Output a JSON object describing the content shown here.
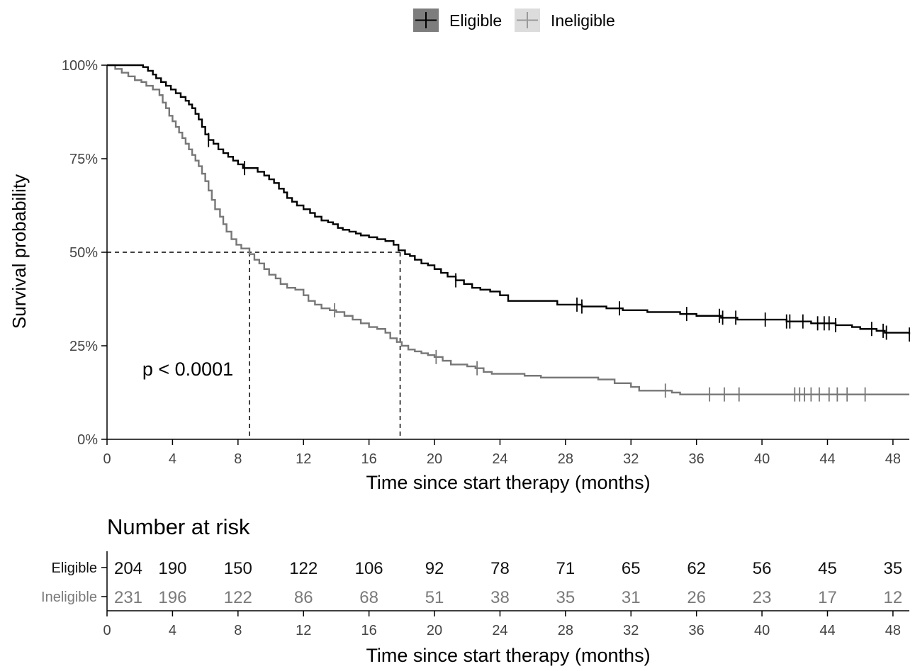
{
  "chart_data": {
    "type": "line",
    "subtype": "kaplan-meier",
    "title": "",
    "xlabel": "Time since start therapy (months)",
    "ylabel": "Survival probability",
    "xlim": [
      0,
      49
    ],
    "ylim": [
      0,
      1
    ],
    "x_ticks": [
      0,
      4,
      8,
      12,
      16,
      20,
      24,
      28,
      32,
      36,
      40,
      44,
      48
    ],
    "x_tick_labels": [
      "0",
      "4",
      "8",
      "12",
      "16",
      "20",
      "24",
      "28",
      "32",
      "36",
      "40",
      "44",
      "48"
    ],
    "y_ticks": [
      0,
      0.25,
      0.5,
      0.75,
      1.0
    ],
    "y_tick_labels": [
      "0%",
      "25%",
      "50%",
      "75%",
      "100%"
    ],
    "grid": false,
    "legend": {
      "placement": "top",
      "entries": [
        "Eligible",
        "Ineligible"
      ]
    },
    "annotation": "p < 0.0001",
    "median_lines": [
      {
        "series": "Ineligible",
        "x": 8.7,
        "y": 0.5
      },
      {
        "series": "Eligible",
        "x": 17.9,
        "y": 0.5
      }
    ],
    "series": [
      {
        "name": "Eligible",
        "color": "#000000",
        "steps": [
          [
            0,
            1.0
          ],
          [
            2.2,
            0.995
          ],
          [
            2.5,
            0.985
          ],
          [
            2.8,
            0.975
          ],
          [
            3.0,
            0.965
          ],
          [
            3.3,
            0.955
          ],
          [
            3.6,
            0.945
          ],
          [
            3.9,
            0.935
          ],
          [
            4.2,
            0.925
          ],
          [
            4.5,
            0.915
          ],
          [
            4.8,
            0.905
          ],
          [
            5.0,
            0.895
          ],
          [
            5.2,
            0.885
          ],
          [
            5.4,
            0.87
          ],
          [
            5.6,
            0.855
          ],
          [
            5.8,
            0.835
          ],
          [
            6.0,
            0.815
          ],
          [
            6.2,
            0.8
          ],
          [
            6.5,
            0.79
          ],
          [
            6.8,
            0.775
          ],
          [
            7.1,
            0.765
          ],
          [
            7.4,
            0.755
          ],
          [
            7.7,
            0.745
          ],
          [
            8.0,
            0.735
          ],
          [
            8.3,
            0.725
          ],
          [
            8.8,
            0.725
          ],
          [
            9.2,
            0.715
          ],
          [
            9.6,
            0.705
          ],
          [
            9.9,
            0.695
          ],
          [
            10.2,
            0.685
          ],
          [
            10.5,
            0.67
          ],
          [
            10.8,
            0.66
          ],
          [
            11.0,
            0.645
          ],
          [
            11.3,
            0.635
          ],
          [
            11.6,
            0.625
          ],
          [
            12.0,
            0.615
          ],
          [
            12.4,
            0.605
          ],
          [
            12.7,
            0.595
          ],
          [
            13.1,
            0.585
          ],
          [
            13.5,
            0.58
          ],
          [
            13.8,
            0.575
          ],
          [
            14.1,
            0.565
          ],
          [
            14.4,
            0.56
          ],
          [
            14.8,
            0.555
          ],
          [
            15.2,
            0.55
          ],
          [
            15.5,
            0.545
          ],
          [
            16.0,
            0.54
          ],
          [
            16.5,
            0.535
          ],
          [
            17.0,
            0.53
          ],
          [
            17.5,
            0.52
          ],
          [
            17.8,
            0.505
          ],
          [
            18.2,
            0.495
          ],
          [
            18.5,
            0.49
          ],
          [
            18.8,
            0.48
          ],
          [
            19.2,
            0.47
          ],
          [
            19.6,
            0.465
          ],
          [
            20.0,
            0.455
          ],
          [
            20.4,
            0.445
          ],
          [
            20.8,
            0.435
          ],
          [
            21.3,
            0.425
          ],
          [
            21.8,
            0.415
          ],
          [
            22.3,
            0.405
          ],
          [
            22.8,
            0.4
          ],
          [
            23.4,
            0.395
          ],
          [
            24.0,
            0.385
          ],
          [
            24.5,
            0.37
          ],
          [
            26.0,
            0.37
          ],
          [
            27.5,
            0.36
          ],
          [
            29.0,
            0.355
          ],
          [
            30.5,
            0.35
          ],
          [
            31.5,
            0.345
          ],
          [
            33.0,
            0.34
          ],
          [
            35.0,
            0.335
          ],
          [
            36.0,
            0.33
          ],
          [
            37.5,
            0.325
          ],
          [
            38.5,
            0.32
          ],
          [
            40.0,
            0.32
          ],
          [
            41.5,
            0.315
          ],
          [
            43.0,
            0.31
          ],
          [
            44.5,
            0.305
          ],
          [
            45.5,
            0.3
          ],
          [
            46.0,
            0.295
          ],
          [
            47.0,
            0.29
          ],
          [
            47.5,
            0.285
          ],
          [
            49.0,
            0.28
          ]
        ],
        "censors": [
          6.2,
          8.4,
          21.3,
          28.7,
          29.0,
          31.3,
          35.4,
          37.4,
          37.6,
          38.4,
          40.2,
          41.5,
          41.7,
          42.5,
          43.4,
          43.8,
          44.1,
          44.5,
          46.7,
          47.4,
          47.6,
          49.0
        ]
      },
      {
        "name": "Ineligible",
        "color": "#777777",
        "steps": [
          [
            0,
            1.0
          ],
          [
            0.5,
            0.99
          ],
          [
            0.9,
            0.98
          ],
          [
            1.3,
            0.97
          ],
          [
            1.7,
            0.96
          ],
          [
            2.1,
            0.955
          ],
          [
            2.4,
            0.945
          ],
          [
            2.8,
            0.935
          ],
          [
            3.2,
            0.92
          ],
          [
            3.4,
            0.9
          ],
          [
            3.6,
            0.885
          ],
          [
            3.8,
            0.865
          ],
          [
            4.0,
            0.85
          ],
          [
            4.2,
            0.835
          ],
          [
            4.4,
            0.82
          ],
          [
            4.6,
            0.805
          ],
          [
            4.8,
            0.79
          ],
          [
            5.0,
            0.775
          ],
          [
            5.2,
            0.76
          ],
          [
            5.4,
            0.745
          ],
          [
            5.6,
            0.73
          ],
          [
            5.8,
            0.71
          ],
          [
            6.0,
            0.69
          ],
          [
            6.2,
            0.665
          ],
          [
            6.4,
            0.64
          ],
          [
            6.6,
            0.615
          ],
          [
            6.9,
            0.595
          ],
          [
            7.1,
            0.575
          ],
          [
            7.3,
            0.555
          ],
          [
            7.6,
            0.535
          ],
          [
            7.9,
            0.52
          ],
          [
            8.2,
            0.51
          ],
          [
            8.7,
            0.495
          ],
          [
            9.0,
            0.48
          ],
          [
            9.3,
            0.47
          ],
          [
            9.6,
            0.455
          ],
          [
            9.9,
            0.44
          ],
          [
            10.3,
            0.43
          ],
          [
            10.6,
            0.415
          ],
          [
            11.0,
            0.405
          ],
          [
            11.5,
            0.4
          ],
          [
            12.0,
            0.385
          ],
          [
            12.3,
            0.37
          ],
          [
            12.7,
            0.36
          ],
          [
            13.1,
            0.35
          ],
          [
            13.6,
            0.345
          ],
          [
            14.0,
            0.34
          ],
          [
            14.5,
            0.33
          ],
          [
            15.0,
            0.32
          ],
          [
            15.5,
            0.31
          ],
          [
            16.0,
            0.3
          ],
          [
            16.5,
            0.295
          ],
          [
            17.0,
            0.285
          ],
          [
            17.3,
            0.27
          ],
          [
            17.7,
            0.26
          ],
          [
            18.0,
            0.25
          ],
          [
            18.4,
            0.24
          ],
          [
            18.8,
            0.235
          ],
          [
            19.2,
            0.23
          ],
          [
            19.6,
            0.225
          ],
          [
            20.0,
            0.22
          ],
          [
            20.5,
            0.21
          ],
          [
            21.0,
            0.2
          ],
          [
            22.0,
            0.195
          ],
          [
            22.5,
            0.19
          ],
          [
            23.0,
            0.18
          ],
          [
            23.5,
            0.175
          ],
          [
            25.5,
            0.17
          ],
          [
            26.5,
            0.165
          ],
          [
            30.0,
            0.16
          ],
          [
            31.0,
            0.15
          ],
          [
            32.0,
            0.14
          ],
          [
            32.5,
            0.13
          ],
          [
            34.5,
            0.125
          ],
          [
            35.0,
            0.12
          ],
          [
            49.0,
            0.12
          ]
        ],
        "censors": [
          13.9,
          20.1,
          22.6,
          34.1,
          36.8,
          37.7,
          38.6,
          42.0,
          42.3,
          42.6,
          43.0,
          43.5,
          44.1,
          44.6,
          45.2,
          46.3
        ]
      }
    ],
    "risk_table": {
      "title": "Number at risk",
      "xlabel": "Time since start therapy (months)",
      "times": [
        0,
        4,
        8,
        12,
        16,
        20,
        24,
        28,
        32,
        36,
        40,
        44,
        48
      ],
      "rows": [
        {
          "name": "Eligible",
          "color": "#111111",
          "values": [
            204,
            190,
            150,
            122,
            106,
            92,
            78,
            71,
            65,
            62,
            56,
            45,
            35
          ]
        },
        {
          "name": "Ineligible",
          "color": "#7a7a7a",
          "values": [
            231,
            196,
            122,
            86,
            68,
            51,
            38,
            35,
            31,
            26,
            23,
            17,
            12
          ]
        }
      ]
    }
  }
}
